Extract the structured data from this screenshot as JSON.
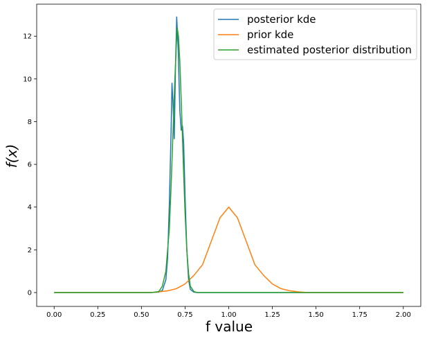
{
  "chart_data": {
    "type": "line",
    "title": "",
    "xlabel": "f value",
    "ylabel": "f(x)",
    "xlim": [
      -0.1,
      2.1
    ],
    "ylim": [
      -0.65,
      13.5
    ],
    "xticks": [
      0.0,
      0.25,
      0.5,
      0.75,
      1.0,
      1.25,
      1.5,
      1.75,
      2.0
    ],
    "xtick_labels": [
      "0.00",
      "0.25",
      "0.50",
      "0.75",
      "1.00",
      "1.25",
      "1.50",
      "1.75",
      "2.00"
    ],
    "yticks": [
      0,
      2,
      4,
      6,
      8,
      10,
      12
    ],
    "ytick_labels": [
      "0",
      "2",
      "4",
      "6",
      "8",
      "10",
      "12"
    ],
    "grid": false,
    "legend_position": "upper right",
    "series": [
      {
        "name": "posterior kde",
        "color": "#1f77b4",
        "points": [
          [
            0.0,
            0.0
          ],
          [
            0.55,
            0.0
          ],
          [
            0.6,
            0.02
          ],
          [
            0.62,
            0.1
          ],
          [
            0.64,
            0.6
          ],
          [
            0.65,
            1.6
          ],
          [
            0.66,
            4.2
          ],
          [
            0.67,
            7.6
          ],
          [
            0.675,
            9.8
          ],
          [
            0.68,
            9.0
          ],
          [
            0.688,
            7.2
          ],
          [
            0.695,
            10.5
          ],
          [
            0.702,
            12.9
          ],
          [
            0.71,
            11.5
          ],
          [
            0.72,
            8.5
          ],
          [
            0.728,
            7.6
          ],
          [
            0.735,
            7.8
          ],
          [
            0.742,
            7.0
          ],
          [
            0.75,
            4.5
          ],
          [
            0.76,
            2.0
          ],
          [
            0.77,
            0.6
          ],
          [
            0.78,
            0.15
          ],
          [
            0.8,
            0.02
          ],
          [
            0.82,
            0.0
          ],
          [
            2.0,
            0.0
          ]
        ]
      },
      {
        "name": "prior kde",
        "color": "#ff7f0e",
        "points": [
          [
            0.0,
            0.0
          ],
          [
            0.55,
            0.0
          ],
          [
            0.6,
            0.03
          ],
          [
            0.65,
            0.08
          ],
          [
            0.7,
            0.18
          ],
          [
            0.75,
            0.4
          ],
          [
            0.8,
            0.8
          ],
          [
            0.85,
            1.3
          ],
          [
            0.9,
            2.4
          ],
          [
            0.95,
            3.5
          ],
          [
            1.0,
            4.0
          ],
          [
            1.05,
            3.5
          ],
          [
            1.1,
            2.4
          ],
          [
            1.15,
            1.3
          ],
          [
            1.2,
            0.8
          ],
          [
            1.25,
            0.4
          ],
          [
            1.3,
            0.18
          ],
          [
            1.35,
            0.08
          ],
          [
            1.4,
            0.03
          ],
          [
            1.45,
            0.0
          ],
          [
            2.0,
            0.0
          ]
        ]
      },
      {
        "name": "estimated posterior distribution",
        "color": "#2ca02c",
        "points": [
          [
            0.0,
            0.0
          ],
          [
            0.56,
            0.0
          ],
          [
            0.6,
            0.05
          ],
          [
            0.62,
            0.3
          ],
          [
            0.64,
            1.0
          ],
          [
            0.66,
            3.0
          ],
          [
            0.67,
            5.0
          ],
          [
            0.68,
            7.3
          ],
          [
            0.69,
            9.7
          ],
          [
            0.7,
            11.6
          ],
          [
            0.705,
            12.4
          ],
          [
            0.712,
            12.0
          ],
          [
            0.72,
            10.8
          ],
          [
            0.73,
            8.5
          ],
          [
            0.74,
            6.0
          ],
          [
            0.75,
            3.7
          ],
          [
            0.76,
            2.0
          ],
          [
            0.77,
            0.9
          ],
          [
            0.78,
            0.3
          ],
          [
            0.8,
            0.05
          ],
          [
            0.82,
            0.0
          ],
          [
            2.0,
            0.0
          ]
        ]
      }
    ]
  }
}
